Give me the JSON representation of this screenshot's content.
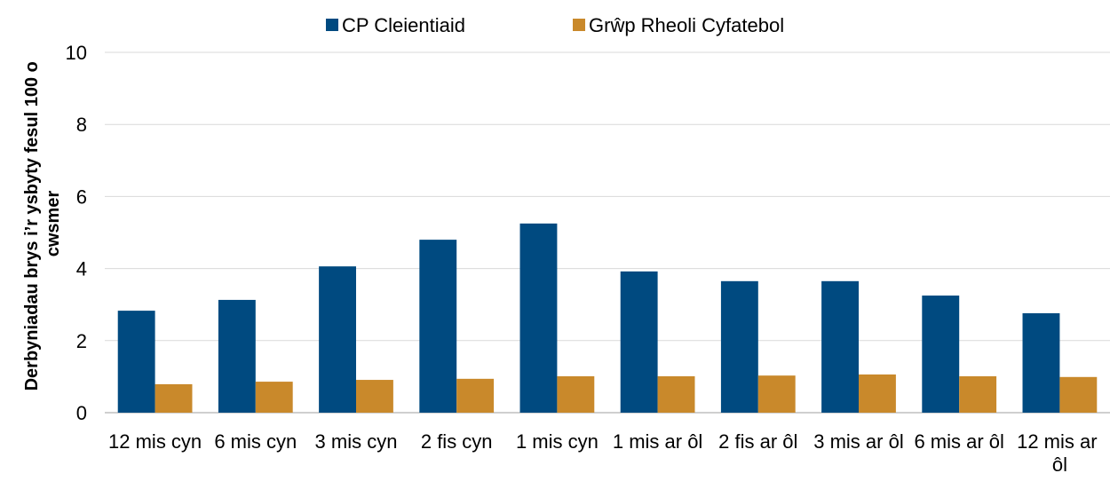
{
  "chart_data": {
    "type": "bar",
    "y_label": "Derbyniadau brys i’r ysbyty fesul 100 o cwsmer",
    "categories": [
      "12 mis cyn",
      "6 mis cyn",
      "3 mis cyn",
      "2 fis cyn",
      "1 mis cyn",
      "1 mis ar ôl",
      "2 fis ar ôl",
      "3 mis ar ôl",
      "6 mis ar ôl",
      "12 mis ar ôl"
    ],
    "series": [
      {
        "name": "CP Cleientiaid",
        "color": "#004a80",
        "values": [
          2.83,
          3.13,
          4.06,
          4.8,
          5.25,
          3.92,
          3.65,
          3.65,
          3.25,
          2.76
        ]
      },
      {
        "name": "Grŵp Rheoli Cyfatebol",
        "color": "#c9892b",
        "values": [
          0.79,
          0.86,
          0.91,
          0.94,
          1.01,
          1.01,
          1.03,
          1.06,
          1.01,
          0.99
        ]
      }
    ],
    "ylim": [
      0,
      10
    ],
    "yticks": [
      0,
      2,
      4,
      6,
      8,
      10
    ],
    "grid": true,
    "legend": "top"
  }
}
